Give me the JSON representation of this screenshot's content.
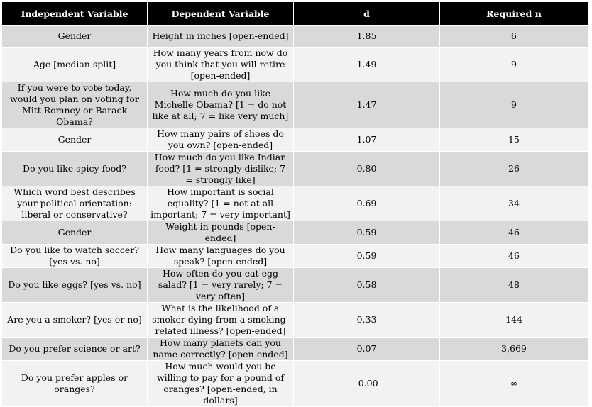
{
  "headers": [
    "Independent Variable",
    "Dependent Variable",
    "d",
    "Required n"
  ],
  "rows": [
    {
      "iv": "Gender",
      "dv": "Height in inches [open-ended]",
      "d": "1.85",
      "n": "6"
    },
    {
      "iv": "Age [median split]",
      "dv": "How many years from now do you think that you will retire [open-ended]",
      "d": "1.49",
      "n": "9"
    },
    {
      "iv": "If you were to vote today, would you plan on voting for Mitt Romney or Barack Obama?",
      "dv": "How much do you like Michelle Obama? [1 = do not like at all; 7 = like very much]",
      "d": "1.47",
      "n": "9"
    },
    {
      "iv": "Gender",
      "dv": "How many pairs of shoes do you own? [open-ended]",
      "d": "1.07",
      "n": "15"
    },
    {
      "iv": "Do you like spicy food?",
      "dv": "How much do you like Indian food? [1 = strongly dislike; 7 = strongly like]",
      "d": "0.80",
      "n": "26"
    },
    {
      "iv": "Which word best describes your political orientation: liberal or conservative?",
      "dv": "How important is social equality? [1 = not at all important; 7 = very important]",
      "d": "0.69",
      "n": "34"
    },
    {
      "iv": "Gender",
      "dv": "Weight in pounds [open-ended]",
      "d": "0.59",
      "n": "46"
    },
    {
      "iv": "Do you like to watch soccer? [yes vs. no]",
      "dv": "How many languages do you speak? [open-ended]",
      "d": "0.59",
      "n": "46"
    },
    {
      "iv": "Do you like eggs? [yes vs. no]",
      "dv": "How often do you eat egg salad? [1 = very rarely; 7 = very often]",
      "d": "0.58",
      "n": "48"
    },
    {
      "iv": "Are you a smoker? [yes or no]",
      "dv": "What is the likelihood of a smoker dying from a smoking-related illness? [open-ended]",
      "d": "0.33",
      "n": "144"
    },
    {
      "iv": "Do you prefer science or art?",
      "dv": "How many planets can you name correctly? [open-ended]",
      "d": "0.07",
      "n": "3,669"
    },
    {
      "iv": "Do you prefer apples or oranges?",
      "dv": "How much would you be willing to pay for a pound of oranges? [open-ended, in dollars]",
      "d": "-0.00",
      "n": "∞"
    }
  ]
}
